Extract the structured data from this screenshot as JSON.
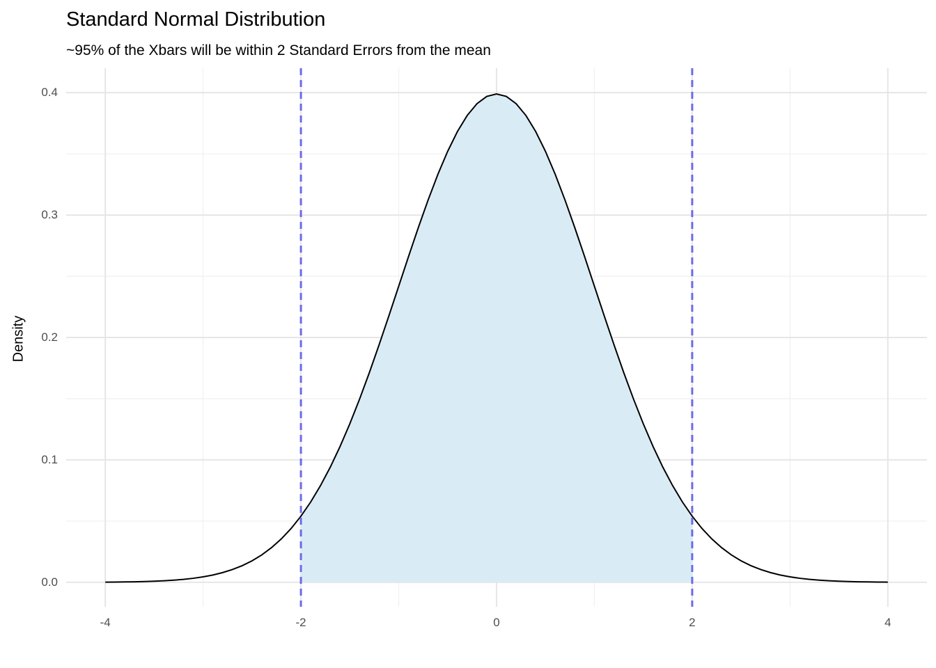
{
  "chart_data": {
    "type": "area",
    "title": "Standard Normal Distribution",
    "subtitle": "~95% of the Xbars will be within 2 Standard Errors from the mean",
    "xlabel": "",
    "ylabel": "Density",
    "xlim": [
      -4.4,
      4.4
    ],
    "ylim": [
      -0.02,
      0.42
    ],
    "x_ticks": [
      -4,
      -2,
      0,
      2,
      4
    ],
    "x_tick_labels": [
      "-4",
      "-2",
      "0",
      "2",
      "4"
    ],
    "y_ticks": [
      0.0,
      0.1,
      0.2,
      0.3,
      0.4
    ],
    "y_tick_labels": [
      "0.0",
      "0.1",
      "0.2",
      "0.3",
      "0.4"
    ],
    "x_minor_ticks": [
      -3,
      -1,
      1,
      3
    ],
    "y_minor_ticks": [
      0.05,
      0.15,
      0.25,
      0.35
    ],
    "grid": "on",
    "legend": "none",
    "curve": {
      "name": "standard-normal-pdf",
      "mean": 0,
      "sd": 1,
      "x_start": -4,
      "x_step": 0.1,
      "y": [
        0.00013,
        0.0002,
        0.00029,
        0.00042,
        0.00061,
        0.00087,
        0.00123,
        0.00172,
        0.00238,
        0.00327,
        0.00443,
        0.00595,
        0.00792,
        0.01042,
        0.01358,
        0.01753,
        0.02239,
        0.02833,
        0.03547,
        0.04398,
        0.05399,
        0.06562,
        0.07895,
        0.09405,
        0.11092,
        0.12952,
        0.14973,
        0.17137,
        0.19419,
        0.21785,
        0.24197,
        0.26609,
        0.28969,
        0.31225,
        0.33322,
        0.35207,
        0.36827,
        0.38139,
        0.39104,
        0.39695,
        0.39894,
        0.39695,
        0.39104,
        0.38139,
        0.36827,
        0.35207,
        0.33322,
        0.31225,
        0.28969,
        0.26609,
        0.24197,
        0.21785,
        0.19419,
        0.17137,
        0.14973,
        0.12952,
        0.11092,
        0.09405,
        0.07895,
        0.06562,
        0.05399,
        0.04398,
        0.03547,
        0.02833,
        0.02239,
        0.01753,
        0.01358,
        0.01042,
        0.00792,
        0.00595,
        0.00443,
        0.00327,
        0.00238,
        0.00172,
        0.00123,
        0.00087,
        0.00061,
        0.00042,
        0.00029,
        0.0002,
        0.00013
      ]
    },
    "shaded_region": {
      "from": -2,
      "to": 2,
      "fill": "#d9ecf6"
    },
    "vlines": {
      "x": [
        -2,
        2
      ],
      "style": "dashed",
      "color": "#6b6be9",
      "width": 3,
      "dash": [
        10,
        7
      ]
    },
    "colors": {
      "curve": "#000000",
      "grid_major": "#e6e6e6",
      "grid_minor": "#f1f1f1",
      "background": "#ffffff",
      "tick_label": "#4d4d4d",
      "text": "#000000"
    }
  }
}
